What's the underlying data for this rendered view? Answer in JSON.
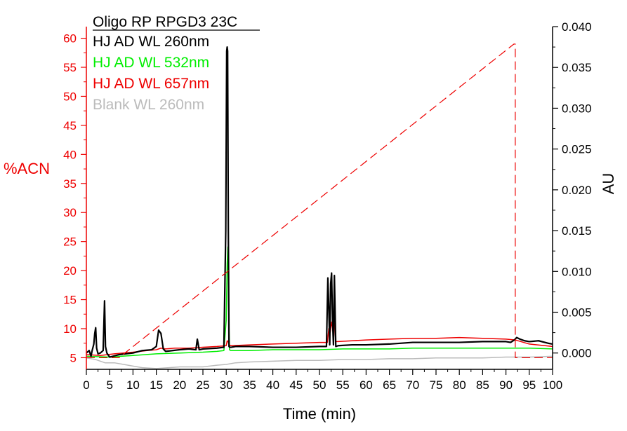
{
  "chart_data": {
    "type": "line",
    "legend": {
      "title": "Oligo RP RPGD3 23C",
      "placement": "top-left",
      "entries": [
        {
          "label": "HJ AD WL 260nm",
          "color": "#000000"
        },
        {
          "label": "HJ AD WL 532nm",
          "color": "#00ee00"
        },
        {
          "label": "HJ AD WL 657nm",
          "color": "#ee0000"
        },
        {
          "label": "Blank WL 260nm",
          "color": "#bbbbbb"
        }
      ]
    },
    "x_axis": {
      "label": "Time (min)",
      "range": [
        0,
        100
      ],
      "ticks": [
        "0",
        "5",
        "10",
        "15",
        "20",
        "25",
        "30",
        "35",
        "40",
        "45",
        "50",
        "55",
        "60",
        "65",
        "70",
        "75",
        "80",
        "85",
        "90",
        "95",
        "100"
      ]
    },
    "y_left_axis": {
      "label": "%ACN",
      "color": "#ee0000",
      "range": [
        3,
        62
      ],
      "ticks": [
        "5",
        "10",
        "15",
        "20",
        "25",
        "30",
        "35",
        "40",
        "45",
        "50",
        "55",
        "60"
      ]
    },
    "y_right_axis": {
      "label": "AU",
      "color": "#000000",
      "range": [
        -0.002,
        0.04
      ],
      "ticks": [
        "0.000",
        "0.005",
        "0.010",
        "0.015",
        "0.020",
        "0.025",
        "0.030",
        "0.035",
        "0.040"
      ]
    },
    "grid": false,
    "series": [
      {
        "name": "HJ AD WL 260nm",
        "axis": "right",
        "color": "#000000",
        "style": "solid",
        "x": [
          0,
          0.6,
          1,
          1.2,
          1.6,
          1.8,
          2.0,
          2.2,
          2.5,
          3.0,
          3.6,
          3.9,
          4.1,
          4.4,
          5,
          7,
          10,
          12,
          14,
          15,
          15.5,
          16,
          16.5,
          17,
          20,
          22,
          23.5,
          23.8,
          24.2,
          25,
          28,
          29.5,
          29.9,
          30.1,
          30.2,
          30.3,
          30.45,
          30.6,
          30.8,
          31,
          32,
          35,
          40,
          45,
          50,
          51.5,
          51.8,
          52.0,
          52.2,
          52.4,
          52.6,
          52.8,
          53.0,
          53.2,
          53.5,
          54,
          57,
          60,
          65,
          70,
          75,
          80,
          85,
          90,
          91,
          91.8,
          92.3,
          93,
          94,
          95,
          97,
          99,
          100
        ],
        "y": [
          0.0,
          0.0003,
          -0.0004,
          0.0002,
          0.0011,
          0.0024,
          0.0031,
          0.0006,
          -0.0001,
          0.0,
          0.0003,
          0.0064,
          0.0008,
          0.0,
          -0.0005,
          -0.0002,
          0.0,
          0.0003,
          0.0004,
          0.0008,
          0.0028,
          0.0024,
          0.0005,
          0.0002,
          0.0004,
          0.0005,
          0.0004,
          0.0017,
          0.0004,
          0.0005,
          0.0006,
          0.0007,
          0.015,
          0.037,
          0.0375,
          0.037,
          0.015,
          0.0008,
          0.0007,
          0.0007,
          0.0008,
          0.0008,
          0.0007,
          0.0007,
          0.0008,
          0.0008,
          0.0092,
          0.0055,
          0.001,
          0.0085,
          0.0098,
          0.004,
          0.001,
          0.0095,
          0.0008,
          0.0009,
          0.001,
          0.001,
          0.0011,
          0.0013,
          0.0013,
          0.0013,
          0.0014,
          0.0014,
          0.0013,
          0.0016,
          0.0019,
          0.0017,
          0.0015,
          0.0014,
          0.0015,
          0.0012,
          0.0011
        ]
      },
      {
        "name": "HJ AD WL 532nm",
        "axis": "right",
        "color": "#00ee00",
        "style": "solid",
        "x": [
          0,
          5,
          10,
          15,
          20,
          25,
          28,
          29.5,
          30.0,
          30.2,
          30.35,
          30.5,
          30.7,
          31,
          35,
          40,
          45,
          50,
          55,
          60,
          65,
          70,
          75,
          80,
          85,
          90,
          95,
          100
        ],
        "y": [
          -0.0004,
          -0.0005,
          -0.0003,
          -0.0001,
          0.0,
          0.0001,
          0.0002,
          0.0003,
          0.004,
          0.011,
          0.013,
          0.006,
          0.0004,
          0.0003,
          0.0003,
          0.0004,
          0.0004,
          0.0004,
          0.0005,
          0.0005,
          0.0005,
          0.0006,
          0.0006,
          0.0006,
          0.0006,
          0.0006,
          0.0006,
          0.0005
        ]
      },
      {
        "name": "HJ AD WL 657nm",
        "axis": "right",
        "color": "#ee0000",
        "style": "solid",
        "x": [
          0,
          3,
          6,
          10,
          13,
          15,
          16,
          17,
          19,
          22,
          25,
          28,
          30,
          30.2,
          30.4,
          30.6,
          31,
          35,
          40,
          45,
          50,
          51.7,
          52.0,
          52.3,
          52.6,
          52.9,
          53.2,
          53.5,
          54,
          57,
          60,
          65,
          70,
          75,
          80,
          85,
          90,
          92,
          95,
          100
        ],
        "y": [
          -0.0002,
          -0.0003,
          -0.0001,
          0.0001,
          0.0003,
          0.0004,
          0.0006,
          0.0005,
          0.0006,
          0.0006,
          0.0007,
          0.0008,
          0.0009,
          0.0015,
          0.0014,
          0.001,
          0.0009,
          0.001,
          0.0011,
          0.0012,
          0.0013,
          0.0013,
          0.003,
          0.0025,
          0.0038,
          0.0028,
          0.0036,
          0.0014,
          0.0014,
          0.0015,
          0.0016,
          0.0017,
          0.0018,
          0.0018,
          0.0019,
          0.0018,
          0.0017,
          0.0016,
          0.0011,
          0.0008
        ]
      },
      {
        "name": "Blank WL 260nm",
        "axis": "right",
        "color": "#bbbbbb",
        "style": "solid",
        "x": [
          0,
          2,
          4,
          6,
          8,
          10,
          12,
          15,
          20,
          25,
          28,
          30,
          32,
          35,
          40,
          45,
          50,
          55,
          60,
          65,
          70,
          75,
          80,
          85,
          90,
          95,
          100
        ],
        "y": [
          -0.0006,
          -0.0008,
          -0.0012,
          -0.0012,
          -0.0014,
          -0.0016,
          -0.0018,
          -0.0019,
          -0.0017,
          -0.0017,
          -0.0015,
          -0.0014,
          -0.0012,
          -0.0011,
          -0.001,
          -0.0009,
          -0.0009,
          -0.0008,
          -0.0008,
          -0.0007,
          -0.0007,
          -0.0006,
          -0.0006,
          -0.0006,
          -0.0005,
          -0.0005,
          -0.0004
        ]
      },
      {
        "name": "gradient",
        "axis": "left",
        "color": "#ee0000",
        "style": "dashed",
        "x": [
          0,
          7,
          91.7,
          91.7,
          92.0,
          92.0,
          100
        ],
        "y": [
          5,
          5,
          59,
          59,
          59,
          5,
          5
        ]
      }
    ]
  }
}
